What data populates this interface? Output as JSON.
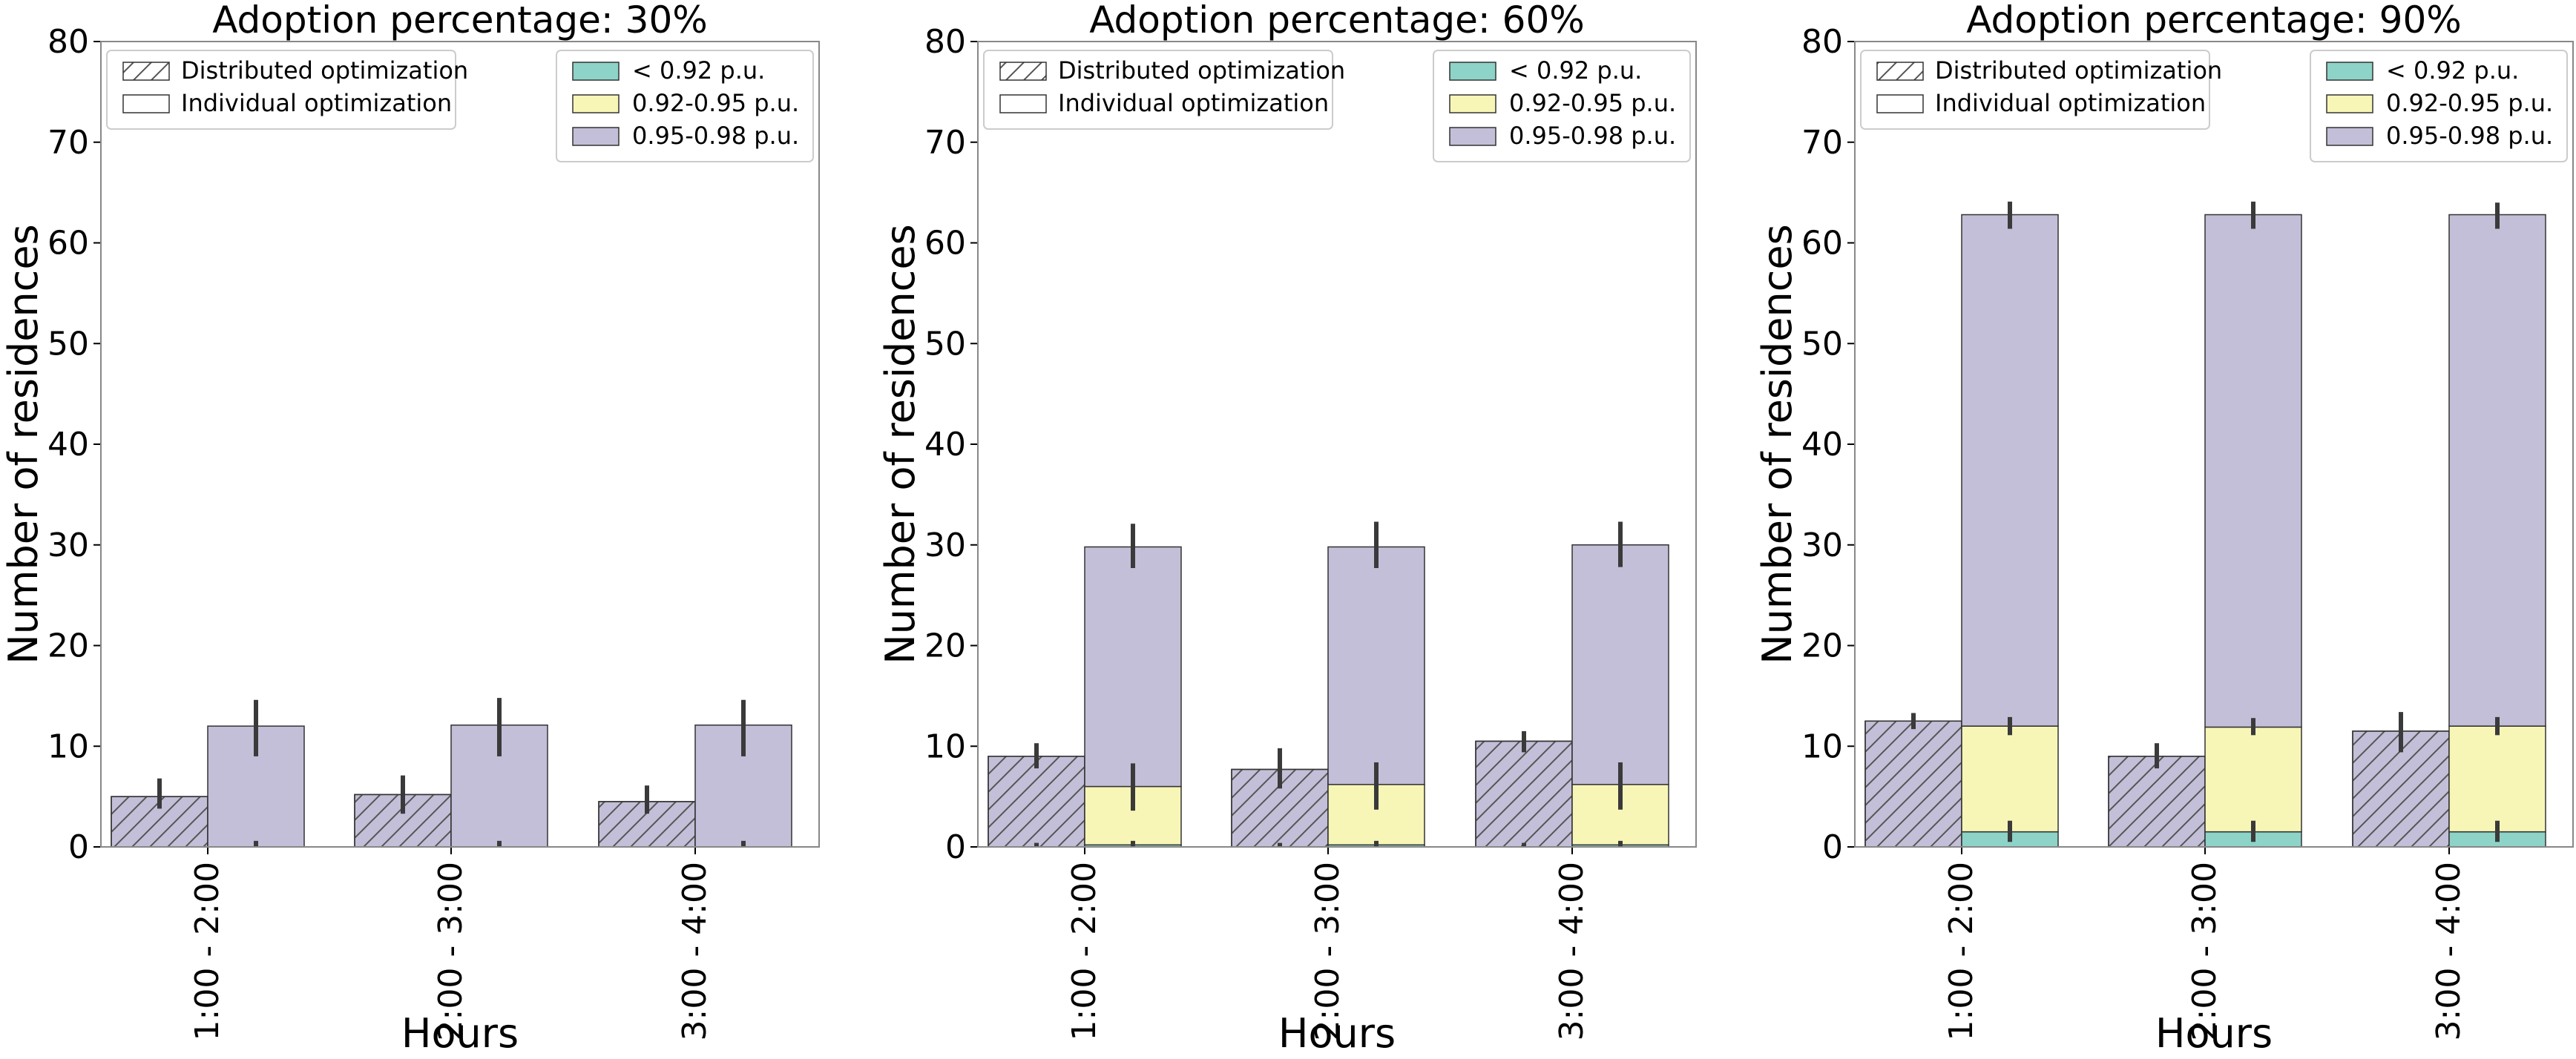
{
  "legend": {
    "patterns": [
      "Distributed optimization",
      "Individual optimization"
    ],
    "bins": [
      "< 0.92 p.u.",
      "0.92-0.95 p.u.",
      "0.95-0.98 p.u."
    ]
  },
  "colors": {
    "low": "#8dd3c7",
    "mid": "#f7f6b7",
    "high": "#c3bfd8",
    "edge": "#333333",
    "errorbar": "#3a3a3a",
    "frame": "#888888"
  },
  "chart_data": [
    {
      "type": "bar",
      "title": "Adoption percentage: 30%",
      "xlabel": "Hours",
      "ylabel": "Number of residences",
      "ylim": [
        0,
        80
      ],
      "yticks": [
        0,
        10,
        20,
        30,
        40,
        50,
        60,
        70,
        80
      ],
      "categories": [
        "1:00 - 2:00",
        "2:00 - 3:00",
        "3:00 - 4:00"
      ],
      "distributed": {
        "low": [
          0,
          0,
          0
        ],
        "mid": [
          0,
          0,
          0
        ],
        "high": [
          5.0,
          5.2,
          4.5
        ],
        "err_total": [
          [
            3.8,
            6.8
          ],
          [
            3.3,
            7.1
          ],
          [
            3.3,
            6.1
          ]
        ]
      },
      "individual": {
        "low": [
          0,
          0,
          0
        ],
        "mid": [
          0,
          0,
          0
        ],
        "high": [
          12.0,
          12.1,
          12.1
        ],
        "err_mid": [
          [
            0,
            0.6
          ],
          [
            0,
            0.6
          ],
          [
            0,
            0.6
          ]
        ],
        "err_total": [
          [
            9.0,
            14.6
          ],
          [
            9.0,
            14.8
          ],
          [
            9.0,
            14.6
          ]
        ]
      }
    },
    {
      "type": "bar",
      "title": "Adoption percentage: 60%",
      "xlabel": "Hours",
      "ylabel": "Number of residences",
      "ylim": [
        0,
        80
      ],
      "yticks": [
        0,
        10,
        20,
        30,
        40,
        50,
        60,
        70,
        80
      ],
      "categories": [
        "1:00 - 2:00",
        "2:00 - 3:00",
        "3:00 - 4:00"
      ],
      "distributed": {
        "low": [
          0,
          0,
          0
        ],
        "mid": [
          0,
          0,
          0
        ],
        "high": [
          9.0,
          7.7,
          10.5
        ],
        "err_total": [
          [
            7.8,
            10.3
          ],
          [
            5.8,
            9.8
          ],
          [
            9.4,
            11.5
          ]
        ],
        "err_low": [
          [
            0,
            0.4
          ],
          [
            0,
            0.4
          ],
          [
            0,
            0.4
          ]
        ]
      },
      "individual": {
        "low": [
          0.2,
          0.2,
          0.2
        ],
        "mid": [
          5.8,
          6.0,
          6.0
        ],
        "high": [
          23.8,
          23.6,
          23.8
        ],
        "err_low": [
          [
            0,
            0.6
          ],
          [
            0,
            0.6
          ],
          [
            0,
            0.6
          ]
        ],
        "err_mid": [
          [
            3.6,
            8.3
          ],
          [
            3.7,
            8.4
          ],
          [
            3.7,
            8.4
          ]
        ],
        "err_total": [
          [
            27.7,
            32.1
          ],
          [
            27.7,
            32.3
          ],
          [
            27.8,
            32.3
          ]
        ]
      }
    },
    {
      "type": "bar",
      "title": "Adoption percentage: 90%",
      "xlabel": "Hours",
      "ylabel": "Number of residences",
      "ylim": [
        0,
        80
      ],
      "yticks": [
        0,
        10,
        20,
        30,
        40,
        50,
        60,
        70,
        80
      ],
      "categories": [
        "1:00 - 2:00",
        "2:00 - 3:00",
        "3:00 - 4:00"
      ],
      "distributed": {
        "low": [
          0,
          0,
          0
        ],
        "mid": [
          0,
          0,
          0
        ],
        "high": [
          12.5,
          9.0,
          11.5
        ],
        "err_total": [
          [
            11.7,
            13.3
          ],
          [
            7.8,
            10.3
          ],
          [
            9.4,
            13.4
          ]
        ]
      },
      "individual": {
        "low": [
          1.5,
          1.5,
          1.5
        ],
        "mid": [
          10.5,
          10.4,
          10.5
        ],
        "high": [
          50.8,
          50.9,
          50.8
        ],
        "err_low": [
          [
            0.5,
            2.6
          ],
          [
            0.5,
            2.6
          ],
          [
            0.5,
            2.6
          ]
        ],
        "err_mid": [
          [
            11.1,
            12.9
          ],
          [
            11.1,
            12.8
          ],
          [
            11.1,
            12.9
          ]
        ],
        "err_total": [
          [
            61.4,
            64.1
          ],
          [
            61.4,
            64.1
          ],
          [
            61.4,
            64.0
          ]
        ]
      }
    }
  ]
}
